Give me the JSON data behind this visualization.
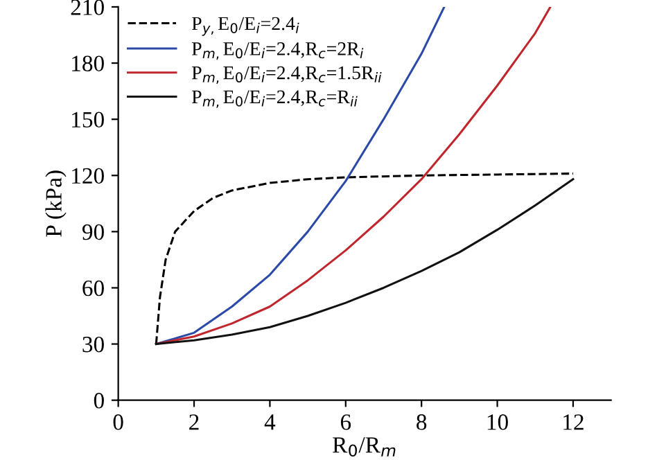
{
  "chart_data": {
    "type": "line",
    "xlabel": "R$_{0}$/R$_{m}$",
    "ylabel": "P (kPa)",
    "xlim": [
      0,
      13
    ],
    "xticks": [
      0,
      2,
      4,
      6,
      8,
      10,
      12
    ],
    "ylim": [
      0,
      210
    ],
    "yticks": [
      0,
      30,
      60,
      90,
      120,
      150,
      180,
      210
    ],
    "legend": "top left",
    "grid": false,
    "series": [
      {
        "name": "P$_{y,}$E$_{0}$/E$_{i}$=2.4$_{i}$",
        "color": "#000000",
        "line_style": "dashed",
        "x": [
          1,
          1.1,
          1.25,
          1.5,
          2,
          2.5,
          3,
          4,
          5,
          6,
          8,
          10,
          12
        ],
        "values": [
          30,
          55,
          75,
          90,
          101,
          108,
          112,
          116,
          118,
          119,
          120,
          120.5,
          121
        ]
      },
      {
        "name": "P$_{m,}$E$_{0}$/E$_{i}$=2.4,R$_{c}$=2R$_{i}$",
        "color": "#2b4aa8",
        "line_style": "solid",
        "x": [
          1,
          2,
          3,
          4,
          5,
          6,
          7,
          8,
          8.6
        ],
        "values": [
          30,
          36,
          50,
          67,
          90,
          117,
          150,
          185,
          210
        ]
      },
      {
        "name": "P$_{m,}$E$_{0}$/E$_{i}$=2.4,R$_{c}$=1.5R$_{ii}$",
        "color": "#c0262d",
        "line_style": "solid",
        "x": [
          1,
          2,
          3,
          4,
          5,
          6,
          7,
          8,
          9,
          10,
          11,
          11.4
        ],
        "values": [
          30,
          34,
          41,
          50,
          64,
          80,
          98,
          118,
          142,
          168,
          196,
          210
        ]
      },
      {
        "name": "P$_{m,}$E$_{0}$/E$_{i}$=2.4,R$_{c}$=R$_{ii}$",
        "color": "#111111",
        "line_style": "solid",
        "x": [
          1,
          2,
          3,
          4,
          5,
          6,
          7,
          8,
          9,
          10,
          11,
          12
        ],
        "values": [
          30,
          32,
          35,
          39,
          45,
          52,
          60,
          69,
          79,
          91,
          104,
          118
        ]
      }
    ]
  }
}
